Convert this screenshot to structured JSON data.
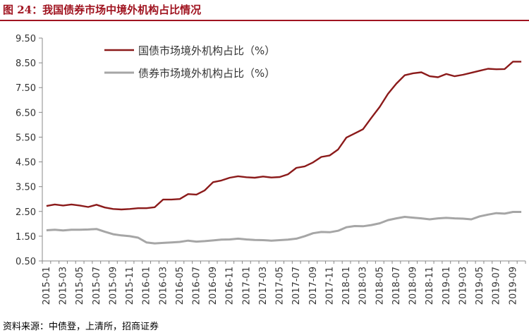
{
  "title": "图 24：我国债券市场中境外机构占比情况",
  "source": "资料来源：中债登，上清所，招商证券",
  "chart_data": {
    "type": "line",
    "title": "",
    "xlabel": "",
    "ylabel": "",
    "ylim": [
      0.5,
      9.5
    ],
    "yticks": [
      0.5,
      1.5,
      2.5,
      3.5,
      4.5,
      5.5,
      6.5,
      7.5,
      8.5,
      9.5
    ],
    "grid": false,
    "legend": "top-left",
    "x_tick_labels": [
      "2015-01",
      "2015-03",
      "2015-05",
      "2015-07",
      "2015-09",
      "2015-11",
      "2016-01",
      "2016-03",
      "2016-05",
      "2016-07",
      "2016-09",
      "2016-11",
      "2017-01",
      "2017-03",
      "2017-05",
      "2017-07",
      "2017-09",
      "2017-11",
      "2018-01",
      "2018-03",
      "2018-05",
      "2018-07",
      "2018-09",
      "2018-11",
      "2019-01",
      "2019-03",
      "2019-05",
      "2019-07",
      "2019-09"
    ],
    "x": [
      "2015-01",
      "2015-02",
      "2015-03",
      "2015-04",
      "2015-05",
      "2015-06",
      "2015-07",
      "2015-08",
      "2015-09",
      "2015-10",
      "2015-11",
      "2015-12",
      "2016-01",
      "2016-02",
      "2016-03",
      "2016-04",
      "2016-05",
      "2016-06",
      "2016-07",
      "2016-08",
      "2016-09",
      "2016-10",
      "2016-11",
      "2016-12",
      "2017-01",
      "2017-02",
      "2017-03",
      "2017-04",
      "2017-05",
      "2017-06",
      "2017-07",
      "2017-08",
      "2017-09",
      "2017-10",
      "2017-11",
      "2017-12",
      "2018-01",
      "2018-02",
      "2018-03",
      "2018-04",
      "2018-05",
      "2018-06",
      "2018-07",
      "2018-08",
      "2018-09",
      "2018-10",
      "2018-11",
      "2018-12",
      "2019-01",
      "2019-02",
      "2019-03",
      "2019-04",
      "2019-05",
      "2019-06",
      "2019-07",
      "2019-08",
      "2019-09",
      "2019-10"
    ],
    "series": [
      {
        "name": "国债市场境外机构占比（%）",
        "color": "#8b1a1a",
        "values": [
          2.72,
          2.78,
          2.74,
          2.78,
          2.74,
          2.68,
          2.77,
          2.66,
          2.6,
          2.58,
          2.6,
          2.63,
          2.63,
          2.67,
          2.98,
          2.98,
          3.0,
          3.2,
          3.18,
          3.35,
          3.68,
          3.75,
          3.86,
          3.92,
          3.88,
          3.86,
          3.91,
          3.87,
          3.89,
          4.0,
          4.26,
          4.32,
          4.48,
          4.7,
          4.76,
          5.0,
          5.48,
          5.65,
          5.82,
          6.28,
          6.72,
          7.25,
          7.66,
          8.0,
          8.08,
          8.12,
          7.96,
          7.92,
          8.05,
          7.96,
          8.02,
          8.1,
          8.18,
          8.26,
          8.24,
          8.25,
          8.55,
          8.55
        ]
      },
      {
        "name": "债券市场境外机构占比（%）",
        "color": "#a6a6a6",
        "values": [
          1.74,
          1.76,
          1.73,
          1.76,
          1.76,
          1.77,
          1.79,
          1.68,
          1.58,
          1.53,
          1.5,
          1.44,
          1.25,
          1.21,
          1.23,
          1.25,
          1.27,
          1.32,
          1.28,
          1.3,
          1.33,
          1.36,
          1.37,
          1.4,
          1.37,
          1.35,
          1.34,
          1.32,
          1.34,
          1.36,
          1.4,
          1.5,
          1.62,
          1.67,
          1.66,
          1.72,
          1.86,
          1.91,
          1.9,
          1.95,
          2.02,
          2.15,
          2.22,
          2.28,
          2.25,
          2.22,
          2.18,
          2.22,
          2.24,
          2.22,
          2.21,
          2.18,
          2.3,
          2.37,
          2.43,
          2.41,
          2.48,
          2.48
        ]
      }
    ]
  }
}
